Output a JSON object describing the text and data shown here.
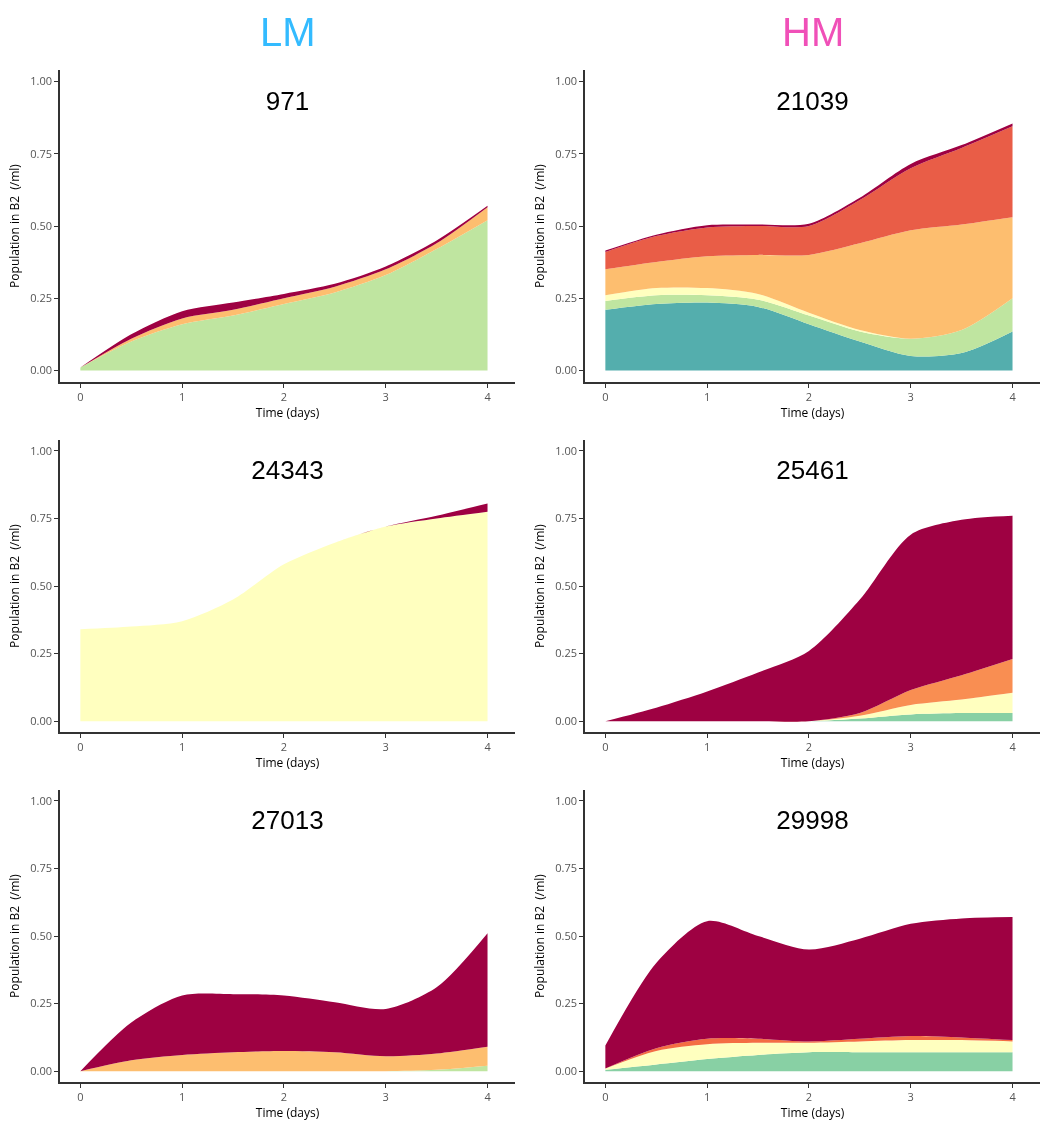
{
  "chart_data": [
    {
      "type": "area",
      "stacked": true,
      "title": "971",
      "annotations": [
        "LM"
      ],
      "xlabel": "Time (days)",
      "ylabel": "Population in B2  (/ml)",
      "x": [
        0,
        0.5,
        1,
        1.5,
        2,
        2.5,
        3,
        3.5,
        4
      ],
      "xlim": [
        -0.2,
        4.27
      ],
      "ylim": [
        -0.04,
        1.04
      ],
      "xticks": [
        0,
        1,
        2,
        3,
        4
      ],
      "yticks": [
        {
          "value": 0,
          "label": "0.00"
        },
        {
          "value": 0.25,
          "label": "0.25"
        },
        {
          "value": 0.5,
          "label": "0.50"
        },
        {
          "value": 0.75,
          "label": "0.75"
        },
        {
          "value": 1,
          "label": "1.00"
        }
      ],
      "grid": false,
      "series": [
        {
          "color": "#bfe5a0",
          "values": [
            0.01,
            0.1,
            0.16,
            0.19,
            0.23,
            0.27,
            0.33,
            0.42,
            0.52
          ]
        },
        {
          "color": "#fdbe6f",
          "values": [
            0,
            0.01,
            0.02,
            0.02,
            0.02,
            0.02,
            0.02,
            0.02,
            0.045
          ]
        },
        {
          "color": "#9e0142",
          "values": [
            0,
            0.015,
            0.025,
            0.025,
            0.015,
            0.01,
            0.01,
            0.01,
            0.005
          ]
        }
      ]
    },
    {
      "type": "area",
      "stacked": true,
      "title": "21039",
      "annotations": [
        "HM"
      ],
      "xlabel": "Time (days)",
      "ylabel": "Population in B2  (/ml)",
      "x": [
        0,
        0.5,
        1,
        1.5,
        2,
        2.5,
        3,
        3.5,
        4
      ],
      "xlim": [
        -0.2,
        4.27
      ],
      "ylim": [
        -0.04,
        1.04
      ],
      "xticks": [
        0,
        1,
        2,
        3,
        4
      ],
      "yticks": [
        {
          "value": 0,
          "label": "0.00"
        },
        {
          "value": 0.25,
          "label": "0.25"
        },
        {
          "value": 0.5,
          "label": "0.50"
        },
        {
          "value": 0.75,
          "label": "0.75"
        },
        {
          "value": 1,
          "label": "1.00"
        }
      ],
      "grid": false,
      "series": [
        {
          "color": "#54aead",
          "values": [
            0.21,
            0.23,
            0.235,
            0.22,
            0.16,
            0.1,
            0.05,
            0.06,
            0.135
          ]
        },
        {
          "color": "#bfe5a0",
          "values": [
            0.03,
            0.03,
            0.025,
            0.025,
            0.03,
            0.035,
            0.06,
            0.08,
            0.115
          ]
        },
        {
          "color": "#ffffbf",
          "values": [
            0.02,
            0.025,
            0.025,
            0.02,
            0.01,
            0.005,
            0,
            0,
            0
          ]
        },
        {
          "color": "#fdbe6f",
          "values": [
            0.09,
            0.09,
            0.11,
            0.135,
            0.2,
            0.3,
            0.375,
            0.365,
            0.28
          ]
        },
        {
          "color": "#e95d47",
          "values": [
            0.06,
            0.09,
            0.1,
            0.1,
            0.1,
            0.15,
            0.215,
            0.265,
            0.315
          ]
        },
        {
          "color": "#9e0142",
          "values": [
            0.005,
            0.005,
            0.008,
            0.005,
            0.008,
            0.008,
            0.015,
            0.01,
            0.01
          ]
        }
      ]
    },
    {
      "type": "area",
      "stacked": true,
      "title": "24343",
      "xlabel": "Time (days)",
      "ylabel": "Population in B2  (/ml)",
      "x": [
        0,
        0.5,
        1,
        1.5,
        2,
        2.5,
        3,
        3.5,
        4
      ],
      "xlim": [
        -0.2,
        4.27
      ],
      "ylim": [
        -0.04,
        1.04
      ],
      "xticks": [
        0,
        1,
        2,
        3,
        4
      ],
      "yticks": [
        {
          "value": 0,
          "label": "0.00"
        },
        {
          "value": 0.25,
          "label": "0.25"
        },
        {
          "value": 0.5,
          "label": "0.50"
        },
        {
          "value": 0.75,
          "label": "0.75"
        },
        {
          "value": 1,
          "label": "1.00"
        }
      ],
      "grid": false,
      "series": [
        {
          "color": "#ffffbf",
          "values": [
            0.34,
            0.35,
            0.37,
            0.45,
            0.58,
            0.66,
            0.72,
            0.75,
            0.775
          ]
        },
        {
          "color": "#9e0142",
          "values": [
            0,
            0,
            0,
            0,
            0,
            0,
            0,
            0.01,
            0.03
          ]
        }
      ]
    },
    {
      "type": "area",
      "stacked": true,
      "title": "25461",
      "xlabel": "Time (days)",
      "ylabel": "Population in B2  (/ml)",
      "x": [
        0,
        0.5,
        1,
        1.5,
        2,
        2.5,
        3,
        3.5,
        4
      ],
      "xlim": [
        -0.2,
        4.27
      ],
      "ylim": [
        -0.04,
        1.04
      ],
      "xticks": [
        0,
        1,
        2,
        3,
        4
      ],
      "yticks": [
        {
          "value": 0,
          "label": "0.00"
        },
        {
          "value": 0.25,
          "label": "0.25"
        },
        {
          "value": 0.5,
          "label": "0.50"
        },
        {
          "value": 0.75,
          "label": "0.75"
        },
        {
          "value": 1,
          "label": "1.00"
        }
      ],
      "grid": false,
      "series": [
        {
          "color": "#88d0a4",
          "values": [
            0,
            0,
            0,
            0,
            0,
            0.01,
            0.025,
            0.03,
            0.03
          ]
        },
        {
          "color": "#ffffbf",
          "values": [
            0,
            0,
            0,
            0,
            0,
            0.01,
            0.035,
            0.05,
            0.075
          ]
        },
        {
          "color": "#f98e52",
          "values": [
            0,
            0,
            0,
            0,
            0,
            0.01,
            0.055,
            0.09,
            0.125
          ]
        },
        {
          "color": "#9e0142",
          "values": [
            0,
            0.05,
            0.11,
            0.18,
            0.26,
            0.42,
            0.575,
            0.575,
            0.53
          ]
        }
      ]
    },
    {
      "type": "area",
      "stacked": true,
      "title": "27013",
      "xlabel": "Time (days)",
      "ylabel": "Population in B2  (/ml)",
      "x": [
        0,
        0.5,
        1,
        1.5,
        2,
        2.5,
        3,
        3.5,
        4
      ],
      "xlim": [
        -0.2,
        4.27
      ],
      "ylim": [
        -0.04,
        1.04
      ],
      "xticks": [
        0,
        1,
        2,
        3,
        4
      ],
      "yticks": [
        {
          "value": 0,
          "label": "0.00"
        },
        {
          "value": 0.25,
          "label": "0.25"
        },
        {
          "value": 0.5,
          "label": "0.50"
        },
        {
          "value": 0.75,
          "label": "0.75"
        },
        {
          "value": 1,
          "label": "1.00"
        }
      ],
      "grid": false,
      "series": [
        {
          "color": "#bfe5a0",
          "values": [
            0,
            0,
            0,
            0,
            0,
            0,
            0,
            0.005,
            0.02
          ]
        },
        {
          "color": "#fdbe6f",
          "values": [
            0,
            0.04,
            0.06,
            0.07,
            0.075,
            0.07,
            0.055,
            0.06,
            0.07
          ]
        },
        {
          "color": "#9e0142",
          "values": [
            0,
            0.14,
            0.22,
            0.215,
            0.205,
            0.185,
            0.175,
            0.245,
            0.42
          ]
        }
      ]
    },
    {
      "type": "area",
      "stacked": true,
      "title": "29998",
      "xlabel": "Time (days)",
      "ylabel": "Population in B2  (/ml)",
      "x": [
        0,
        0.5,
        1,
        1.5,
        2,
        2.5,
        3,
        3.5,
        4
      ],
      "xlim": [
        -0.2,
        4.27
      ],
      "ylim": [
        -0.04,
        1.04
      ],
      "xticks": [
        0,
        1,
        2,
        3,
        4
      ],
      "yticks": [
        {
          "value": 0,
          "label": "0.00"
        },
        {
          "value": 0.25,
          "label": "0.25"
        },
        {
          "value": 0.5,
          "label": "0.50"
        },
        {
          "value": 0.75,
          "label": "0.75"
        },
        {
          "value": 1,
          "label": "1.00"
        }
      ],
      "grid": false,
      "series": [
        {
          "color": "#88d0a4",
          "values": [
            0.005,
            0.025,
            0.045,
            0.06,
            0.07,
            0.07,
            0.07,
            0.07,
            0.07
          ]
        },
        {
          "color": "#ffffbf",
          "values": [
            0.005,
            0.05,
            0.055,
            0.045,
            0.035,
            0.04,
            0.045,
            0.045,
            0.04
          ]
        },
        {
          "color": "#f46d43",
          "values": [
            0,
            0.01,
            0.02,
            0.015,
            0.005,
            0.01,
            0.015,
            0.01,
            0.005
          ]
        },
        {
          "color": "#9e0142",
          "values": [
            0.085,
            0.315,
            0.435,
            0.38,
            0.34,
            0.37,
            0.415,
            0.44,
            0.455
          ]
        }
      ]
    }
  ]
}
